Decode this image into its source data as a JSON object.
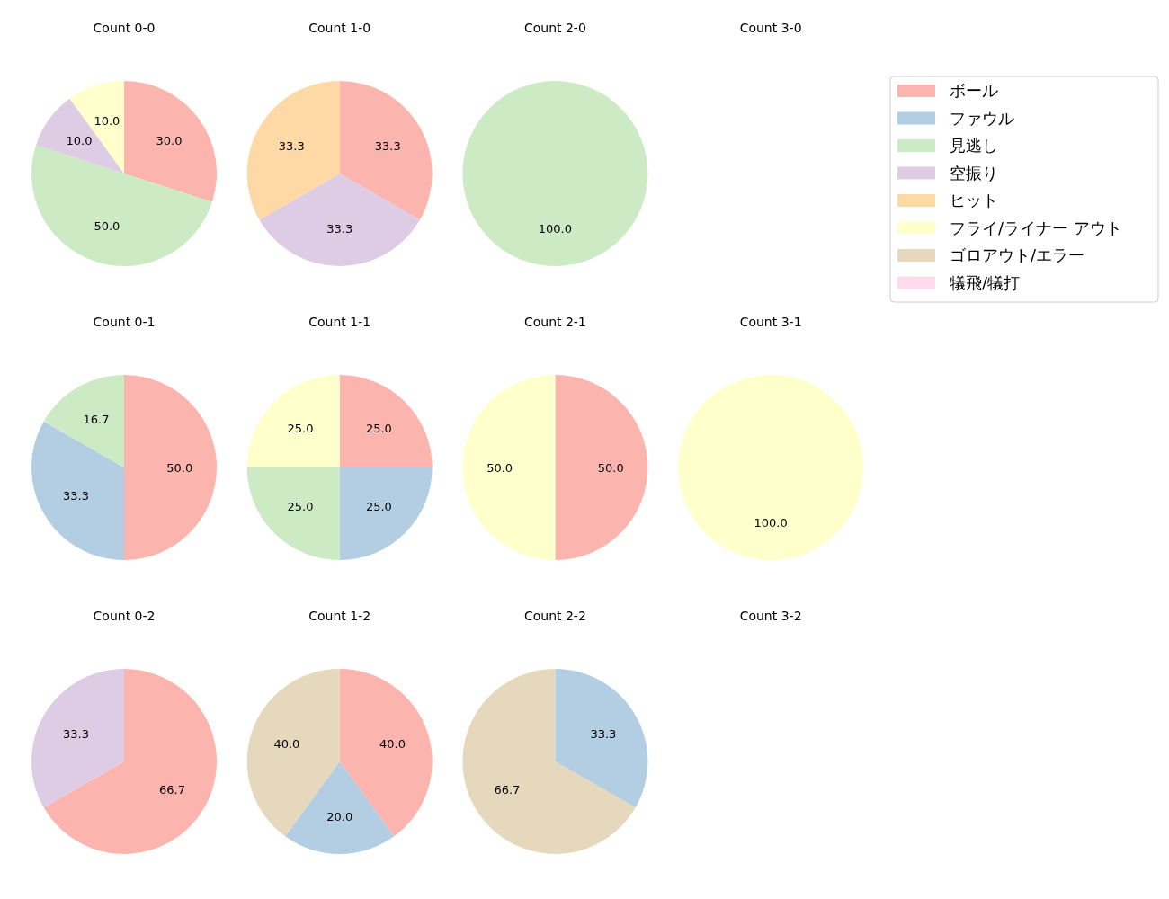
{
  "chart_data": [
    {
      "type": "pie",
      "title": "Count 0-0",
      "categories": [
        "ボール",
        "ファウル",
        "見逃し",
        "空振り",
        "ヒット",
        "フライ/ライナー アウト",
        "ゴロアウト/エラー",
        "犠飛/犠打"
      ],
      "colors": [
        "#fbb4ae",
        "#b3cde3",
        "#ccebc5",
        "#decbe4",
        "#fed9a6",
        "#ffffcc",
        "#e5d8bd",
        "#fddaec"
      ],
      "values": [
        30,
        0,
        50,
        10,
        0,
        10,
        0,
        0
      ],
      "value_labels": [
        "30.0",
        null,
        "50.0",
        "10.0",
        null,
        "10.0",
        null,
        null
      ],
      "legend": "right"
    },
    {
      "type": "pie",
      "title": "Count 1-0",
      "categories": [
        null,
        null,
        null
      ],
      "colors": [
        "#fbb4ae",
        "#decbe4",
        "#fed9a6"
      ],
      "values": [
        33.3,
        33.3,
        33.3
      ],
      "value_labels": [
        "33.3",
        "33.3",
        "33.3"
      ]
    },
    {
      "type": "pie",
      "title": "Count 2-0",
      "categories": [
        null
      ],
      "colors": [
        "#ccebc5"
      ],
      "values": [
        100
      ],
      "value_labels": [
        "100.0"
      ]
    },
    {
      "type": "pie",
      "title": "Count 3-0"
    },
    {
      "type": "pie",
      "title": "Count 0-1",
      "categories": [
        null,
        null,
        null
      ],
      "colors": [
        "#fbb4ae",
        "#b3cde3",
        "#ccebc5"
      ],
      "values": [
        50,
        33.3,
        16.7
      ],
      "value_labels": [
        "50.0",
        "33.3",
        "16.7"
      ]
    },
    {
      "type": "pie",
      "title": "Count 1-1",
      "categories": [
        null,
        null,
        null,
        null
      ],
      "colors": [
        "#fbb4ae",
        "#b3cde3",
        "#ccebc5",
        "#ffffcc"
      ],
      "values": [
        25,
        25,
        25,
        25
      ],
      "value_labels": [
        "25.0",
        "25.0",
        "25.0",
        "25.0"
      ]
    },
    {
      "type": "pie",
      "title": "Count 2-1",
      "categories": [
        null,
        null
      ],
      "colors": [
        "#fbb4ae",
        "#ffffcc"
      ],
      "values": [
        50,
        50
      ],
      "value_labels": [
        "50.0",
        "50.0"
      ]
    },
    {
      "type": "pie",
      "title": "Count 3-1",
      "categories": [
        null
      ],
      "colors": [
        "#ffffcc"
      ],
      "values": [
        100
      ],
      "value_labels": [
        "100.0"
      ]
    },
    {
      "type": "pie",
      "title": "Count 0-2",
      "categories": [
        null,
        null
      ],
      "colors": [
        "#fbb4ae",
        "#decbe4"
      ],
      "values": [
        66.7,
        33.3
      ],
      "value_labels": [
        "66.7",
        "33.3"
      ]
    },
    {
      "type": "pie",
      "title": "Count 1-2",
      "categories": [
        null,
        null,
        null
      ],
      "colors": [
        "#fbb4ae",
        "#b3cde3",
        "#e5d8bd"
      ],
      "values": [
        40,
        20,
        40
      ],
      "value_labels": [
        "40.0",
        "20.0",
        "40.0"
      ]
    },
    {
      "type": "pie",
      "title": "Count 2-2",
      "categories": [
        null,
        null
      ],
      "colors": [
        "#b3cde3",
        "#e5d8bd"
      ],
      "values": [
        33.3,
        66.7
      ],
      "value_labels": [
        "33.3",
        "66.7"
      ]
    },
    {
      "type": "pie",
      "title": "Count 3-2"
    }
  ]
}
